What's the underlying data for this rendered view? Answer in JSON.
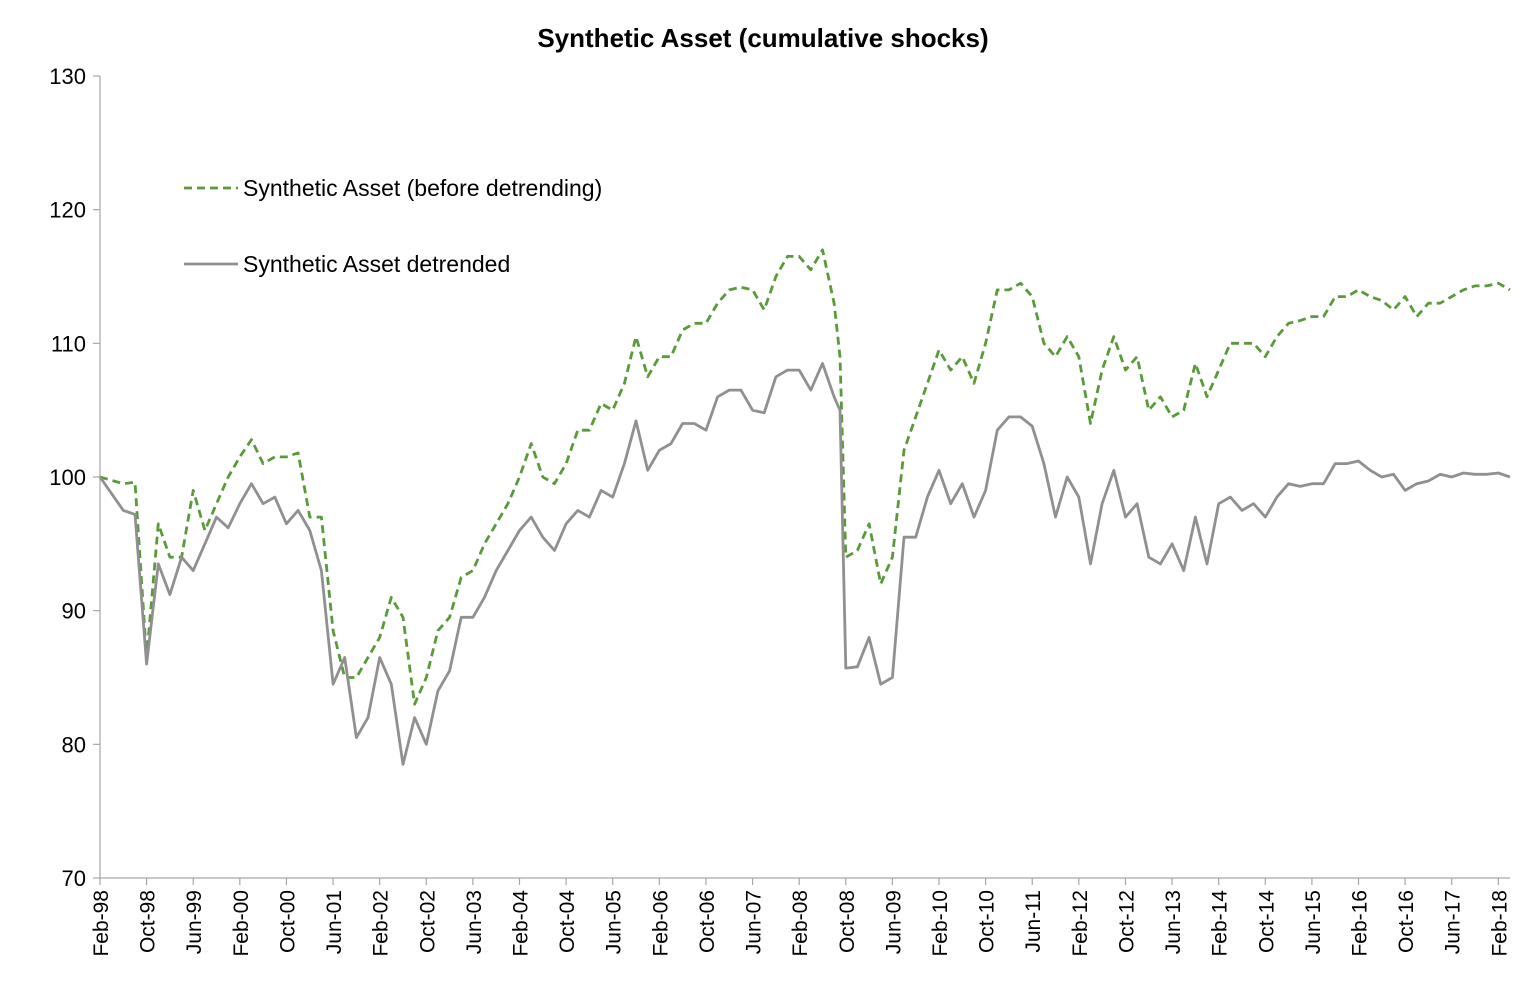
{
  "chart_data": {
    "type": "line",
    "title": "Synthetic Asset (cumulative shocks)",
    "xlabel": "",
    "ylabel": "",
    "ylim": [
      70,
      130
    ],
    "yticks": [
      70,
      80,
      90,
      100,
      110,
      120,
      130
    ],
    "x_start": "Feb-98",
    "x_end": "Apr-18",
    "xticks": [
      "Feb-98",
      "Oct-98",
      "Jun-99",
      "Feb-00",
      "Oct-00",
      "Jun-01",
      "Feb-02",
      "Oct-02",
      "Jun-03",
      "Feb-04",
      "Oct-04",
      "Jun-05",
      "Feb-06",
      "Oct-06",
      "Jun-07",
      "Feb-08",
      "Oct-08",
      "Jun-09",
      "Feb-10",
      "Oct-10",
      "Jun-11",
      "Feb-12",
      "Oct-12",
      "Jun-13",
      "Feb-14",
      "Oct-14",
      "Jun-15",
      "Feb-16",
      "Oct-16",
      "Jun-17",
      "Feb-18"
    ],
    "grid": false,
    "legend_position": "upper-left",
    "series": [
      {
        "name": "Synthetic Asset (before detrending)",
        "color": "#5a9a3a",
        "style": "dashed",
        "x": [
          "Feb-98",
          "Jun-98",
          "Aug-98",
          "Oct-98",
          "Dec-98",
          "Feb-99",
          "Apr-99",
          "Jun-99",
          "Aug-99",
          "Oct-99",
          "Dec-99",
          "Feb-00",
          "Apr-00",
          "Jun-00",
          "Aug-00",
          "Oct-00",
          "Dec-00",
          "Feb-01",
          "Apr-01",
          "Jun-01",
          "Aug-01",
          "Oct-01",
          "Dec-01",
          "Feb-02",
          "Apr-02",
          "Jun-02",
          "Aug-02",
          "Oct-02",
          "Dec-02",
          "Feb-03",
          "Apr-03",
          "Jun-03",
          "Aug-03",
          "Oct-03",
          "Dec-03",
          "Feb-04",
          "Apr-04",
          "Jun-04",
          "Aug-04",
          "Oct-04",
          "Dec-04",
          "Feb-05",
          "Apr-05",
          "Jun-05",
          "Aug-05",
          "Oct-05",
          "Dec-05",
          "Feb-06",
          "Apr-06",
          "Jun-06",
          "Aug-06",
          "Oct-06",
          "Dec-06",
          "Feb-07",
          "Apr-07",
          "Jun-07",
          "Aug-07",
          "Oct-07",
          "Dec-07",
          "Feb-08",
          "Apr-08",
          "Jun-08",
          "Aug-08",
          "Sep-08",
          "Oct-08",
          "Dec-08",
          "Feb-09",
          "Apr-09",
          "Jun-09",
          "Aug-09",
          "Oct-09",
          "Dec-09",
          "Feb-10",
          "Apr-10",
          "Jun-10",
          "Aug-10",
          "Oct-10",
          "Dec-10",
          "Feb-11",
          "Apr-11",
          "Jun-11",
          "Aug-11",
          "Oct-11",
          "Dec-11",
          "Feb-12",
          "Apr-12",
          "Jun-12",
          "Aug-12",
          "Oct-12",
          "Dec-12",
          "Feb-13",
          "Apr-13",
          "Jun-13",
          "Aug-13",
          "Oct-13",
          "Dec-13",
          "Feb-14",
          "Apr-14",
          "Jun-14",
          "Aug-14",
          "Oct-14",
          "Dec-14",
          "Feb-15",
          "Apr-15",
          "Jun-15",
          "Aug-15",
          "Oct-15",
          "Dec-15",
          "Feb-16",
          "Apr-16",
          "Jun-16",
          "Aug-16",
          "Oct-16",
          "Dec-16",
          "Feb-17",
          "Apr-17",
          "Jun-17",
          "Aug-17",
          "Oct-17",
          "Dec-17",
          "Feb-18",
          "Apr-18"
        ],
        "values": [
          100,
          99.5,
          99.6,
          86.5,
          96.5,
          94,
          94,
          99,
          96,
          98,
          100,
          101.5,
          102.8,
          101,
          101.5,
          101.5,
          101.8,
          97,
          97,
          88.5,
          85,
          85,
          86.5,
          88,
          91,
          89.5,
          83,
          85,
          88.5,
          89.5,
          92.5,
          93,
          95,
          96.5,
          98,
          100,
          102.5,
          100,
          99.5,
          101,
          103.5,
          103.5,
          105.5,
          105,
          107,
          110.5,
          107.5,
          109,
          109,
          111,
          111.5,
          111.5,
          113,
          114,
          114.2,
          114,
          112.5,
          115,
          116.5,
          116.5,
          115.5,
          117,
          113,
          109,
          94,
          94.5,
          96.5,
          92,
          94,
          102,
          104.5,
          107,
          109.5,
          108,
          109,
          107,
          110,
          114,
          114,
          114.5,
          113.5,
          110,
          109,
          110.5,
          109,
          104,
          108,
          110.5,
          108,
          109,
          105,
          106,
          104.5,
          105,
          108.5,
          106,
          108,
          110,
          110,
          110,
          109,
          110.5,
          111.5,
          111.7,
          112,
          112,
          113.5,
          113.5,
          114,
          113.5,
          113.2,
          112.5,
          113.5,
          112,
          113,
          113,
          113.5,
          114,
          114.3,
          114.3,
          114.5,
          114
        ]
      },
      {
        "name": "Synthetic Asset detrended",
        "color": "#909090",
        "style": "solid",
        "x": [
          "Feb-98",
          "Jun-98",
          "Aug-98",
          "Oct-98",
          "Dec-98",
          "Feb-99",
          "Apr-99",
          "Jun-99",
          "Aug-99",
          "Oct-99",
          "Dec-99",
          "Feb-00",
          "Apr-00",
          "Jun-00",
          "Aug-00",
          "Oct-00",
          "Dec-00",
          "Feb-01",
          "Apr-01",
          "Jun-01",
          "Aug-01",
          "Oct-01",
          "Dec-01",
          "Feb-02",
          "Apr-02",
          "Jun-02",
          "Aug-02",
          "Oct-02",
          "Dec-02",
          "Feb-03",
          "Apr-03",
          "Jun-03",
          "Aug-03",
          "Oct-03",
          "Dec-03",
          "Feb-04",
          "Apr-04",
          "Jun-04",
          "Aug-04",
          "Oct-04",
          "Dec-04",
          "Feb-05",
          "Apr-05",
          "Jun-05",
          "Aug-05",
          "Oct-05",
          "Dec-05",
          "Feb-06",
          "Apr-06",
          "Jun-06",
          "Aug-06",
          "Oct-06",
          "Dec-06",
          "Feb-07",
          "Apr-07",
          "Jun-07",
          "Aug-07",
          "Oct-07",
          "Dec-07",
          "Feb-08",
          "Apr-08",
          "Jun-08",
          "Aug-08",
          "Sep-08",
          "Oct-08",
          "Dec-08",
          "Feb-09",
          "Apr-09",
          "Jun-09",
          "Aug-09",
          "Oct-09",
          "Dec-09",
          "Feb-10",
          "Apr-10",
          "Jun-10",
          "Aug-10",
          "Oct-10",
          "Dec-10",
          "Feb-11",
          "Apr-11",
          "Jun-11",
          "Aug-11",
          "Oct-11",
          "Dec-11",
          "Feb-12",
          "Apr-12",
          "Jun-12",
          "Aug-12",
          "Oct-12",
          "Dec-12",
          "Feb-13",
          "Apr-13",
          "Jun-13",
          "Aug-13",
          "Oct-13",
          "Dec-13",
          "Feb-14",
          "Apr-14",
          "Jun-14",
          "Aug-14",
          "Oct-14",
          "Dec-14",
          "Feb-15",
          "Apr-15",
          "Jun-15",
          "Aug-15",
          "Oct-15",
          "Dec-15",
          "Feb-16",
          "Apr-16",
          "Jun-16",
          "Aug-16",
          "Oct-16",
          "Dec-16",
          "Feb-17",
          "Apr-17",
          "Jun-17",
          "Aug-17",
          "Oct-17",
          "Dec-17",
          "Feb-18",
          "Apr-18"
        ],
        "values": [
          100,
          97.5,
          97.2,
          86,
          93.5,
          91.2,
          94,
          93,
          95,
          97,
          96.2,
          98,
          99.5,
          98,
          98.5,
          96.5,
          97.5,
          96,
          93,
          84.5,
          86.5,
          80.5,
          82,
          86.5,
          84.5,
          78.5,
          82,
          80,
          84,
          85.5,
          89.5,
          89.5,
          91,
          93,
          94.5,
          96,
          97,
          95.5,
          94.5,
          96.5,
          97.5,
          97,
          99,
          98.5,
          101,
          104.2,
          100.5,
          102,
          102.5,
          104,
          104,
          103.5,
          106,
          106.5,
          106.5,
          105,
          104.8,
          107.5,
          108,
          108,
          106.5,
          108.5,
          106,
          105,
          85.7,
          85.8,
          88,
          84.5,
          85,
          95.5,
          95.5,
          98.5,
          100.5,
          98,
          99.5,
          97,
          99,
          103.5,
          104.5,
          104.5,
          103.8,
          101,
          97,
          100,
          98.5,
          93.5,
          98,
          100.5,
          97,
          98,
          94,
          93.5,
          95,
          93,
          97,
          93.5,
          98,
          98.5,
          97.5,
          98,
          97,
          98.5,
          99.5,
          99.3,
          99.5,
          99.5,
          101,
          101,
          101.2,
          100.5,
          100,
          100.2,
          99,
          99.5,
          99.7,
          100.2,
          100,
          100.3,
          100.2,
          100.2,
          100.3,
          100
        ]
      }
    ]
  }
}
